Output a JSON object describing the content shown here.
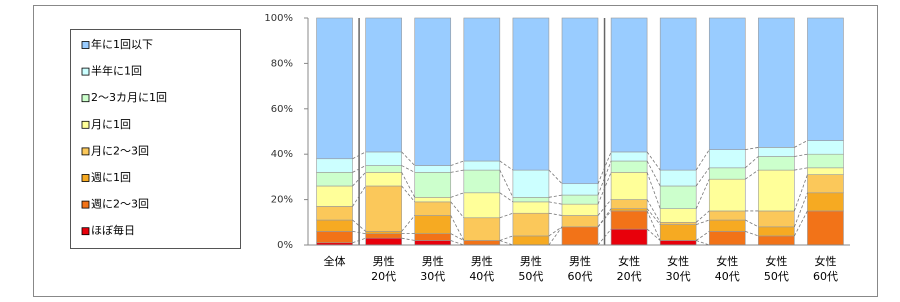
{
  "chart_data": {
    "type": "bar",
    "stacked": true,
    "percent": true,
    "categories": [
      [
        "全体"
      ],
      [
        "男性",
        "20代"
      ],
      [
        "男性",
        "30代"
      ],
      [
        "男性",
        "40代"
      ],
      [
        "男性",
        "50代"
      ],
      [
        "男性",
        "60代"
      ],
      [
        "女性",
        "20代"
      ],
      [
        "女性",
        "30代"
      ],
      [
        "女性",
        "40代"
      ],
      [
        "女性",
        "50代"
      ],
      [
        "女性",
        "60代"
      ]
    ],
    "series": [
      {
        "name": "ほぼ毎日",
        "color": "#e8000b",
        "values": [
          1,
          3,
          2,
          0,
          0,
          0,
          7,
          2,
          0,
          0,
          0
        ]
      },
      {
        "name": "週に2～3回",
        "color": "#f27318",
        "values": [
          5,
          2,
          3,
          2,
          0,
          8,
          8,
          0,
          6,
          4,
          15
        ]
      },
      {
        "name": "週に1回",
        "color": "#f6aa22",
        "values": [
          5,
          1,
          8,
          0,
          4,
          0,
          1,
          7,
          5,
          4,
          8
        ]
      },
      {
        "name": "月に2～3回",
        "color": "#fbc85a",
        "values": [
          6,
          20,
          6,
          10,
          10,
          5,
          4,
          1,
          4,
          7,
          8
        ]
      },
      {
        "name": "月に1回",
        "color": "#ffff99",
        "values": [
          9,
          6,
          2,
          11,
          5,
          5,
          12,
          6,
          14,
          18,
          3
        ]
      },
      {
        "name": "2～3カ月に1回",
        "color": "#ccffcc",
        "values": [
          6,
          3,
          11,
          10,
          2,
          4,
          5,
          10,
          5,
          6,
          6
        ]
      },
      {
        "name": "半年に1回",
        "color": "#ccffff",
        "values": [
          6,
          6,
          3,
          4,
          12,
          5,
          4,
          7,
          8,
          4,
          6
        ]
      },
      {
        "name": "年に1回以下",
        "color": "#99ccff",
        "values": [
          62,
          59,
          65,
          63,
          67,
          73,
          59,
          67,
          58,
          57,
          54
        ]
      }
    ],
    "ylim": [
      0,
      100
    ],
    "yticks": [
      {
        "value": 0,
        "label": "0%"
      },
      {
        "value": 20,
        "label": "20%"
      },
      {
        "value": 40,
        "label": "40%"
      },
      {
        "value": 60,
        "label": "60%"
      },
      {
        "value": 80,
        "label": "80%"
      },
      {
        "value": 100,
        "label": "100%"
      }
    ],
    "legend": "left"
  }
}
